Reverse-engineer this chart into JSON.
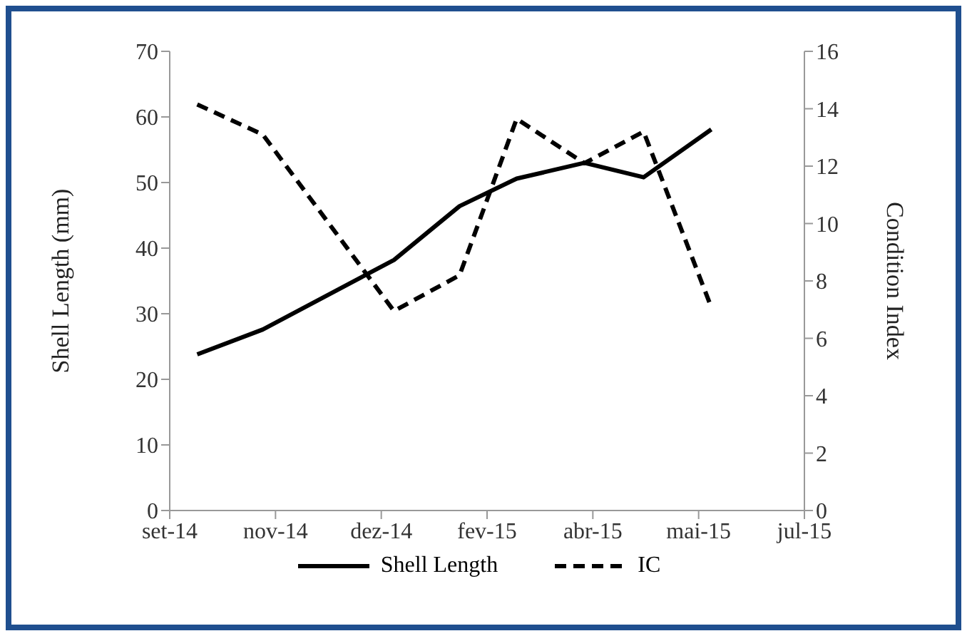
{
  "chart_data": {
    "type": "line",
    "x": [
      "2014-09-28",
      "2014-10-29",
      "2014-12-30",
      "2015-01-30",
      "2015-02-26",
      "2015-03-30",
      "2015-04-27",
      "2015-05-29"
    ],
    "series": [
      {
        "name": "Shell Length",
        "color": "#000000",
        "line_style": "solid",
        "values": [
          23.8,
          27.6,
          38.2,
          46.4,
          50.6,
          53,
          50.8,
          58.1
        ]
      },
      {
        "name": "IC",
        "color": "#000000",
        "line_style": "dashed",
        "axis": "y2",
        "values": [
          14.15,
          13.1,
          6.95,
          8.2,
          13.65,
          12.1,
          13.2,
          7.08
        ]
      }
    ],
    "ylabel": "Shell Length (mm)",
    "y2label": "Condition Index",
    "ylim": [
      0,
      70
    ],
    "yticks": [
      0,
      10,
      20,
      30,
      40,
      50,
      60,
      70
    ],
    "y2lim": [
      0,
      16
    ],
    "y2ticks": [
      0,
      2,
      4,
      6,
      8,
      10,
      12,
      14,
      16
    ],
    "xlim": [
      "2014-09-15",
      "2015-07-12"
    ],
    "xticks": [
      {
        "value": "2014-09-15",
        "label": "set-14"
      },
      {
        "value": "2014-11-04",
        "label": "nov-14"
      },
      {
        "value": "2014-12-24",
        "label": "dez-14"
      },
      {
        "value": "2015-02-12",
        "label": "fev-15"
      },
      {
        "value": "2015-04-03",
        "label": "abr-15"
      },
      {
        "value": "2015-05-23",
        "label": "mai-15"
      },
      {
        "value": "2015-07-12",
        "label": "jul-15"
      }
    ],
    "marker": "none",
    "legend": "bottom",
    "grid": false
  }
}
